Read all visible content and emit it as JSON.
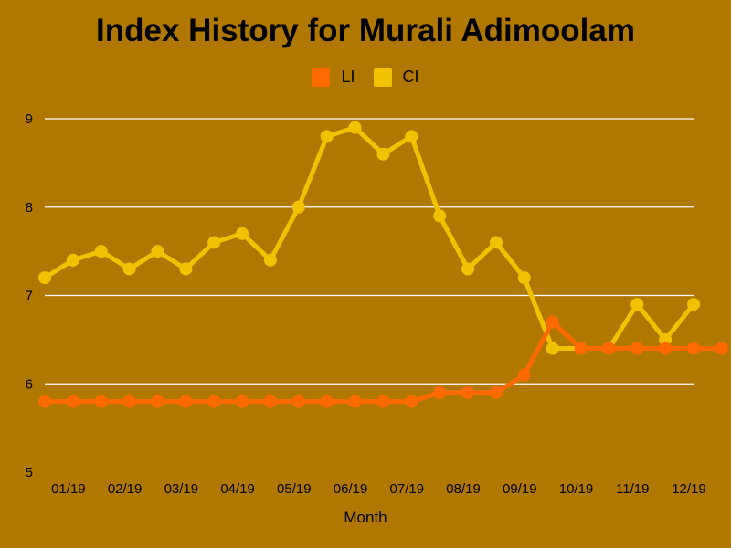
{
  "chart_data": {
    "type": "line",
    "title": "Index History for Murali Adimoolam",
    "xlabel": "Month",
    "ylabel": "",
    "ylim": [
      5,
      9
    ],
    "yticks": [
      5,
      6,
      7,
      8,
      9
    ],
    "grid": true,
    "legend_position": "top-center",
    "x_tick_labels": [
      "01/19",
      "02/19",
      "03/19",
      "04/19",
      "05/19",
      "06/19",
      "07/19",
      "08/19",
      "09/19",
      "10/19",
      "11/19",
      "12/19"
    ],
    "series": [
      {
        "name": "LI",
        "color": "#ff6a00",
        "values": [
          5.8,
          5.8,
          5.8,
          5.8,
          5.8,
          5.8,
          5.8,
          5.8,
          5.8,
          5.8,
          5.8,
          5.8,
          5.8,
          5.8,
          5.9,
          5.9,
          5.9,
          6.1,
          6.7,
          6.4,
          6.4,
          6.4,
          6.4,
          6.4,
          6.4
        ]
      },
      {
        "name": "CI",
        "color": "#f2c200",
        "values": [
          7.2,
          7.4,
          7.5,
          7.3,
          7.5,
          7.3,
          7.6,
          7.7,
          7.4,
          8.0,
          8.8,
          8.9,
          8.6,
          8.8,
          7.9,
          7.3,
          7.6,
          7.2,
          6.4,
          6.4,
          6.4,
          6.9,
          6.5,
          6.9
        ]
      }
    ]
  }
}
